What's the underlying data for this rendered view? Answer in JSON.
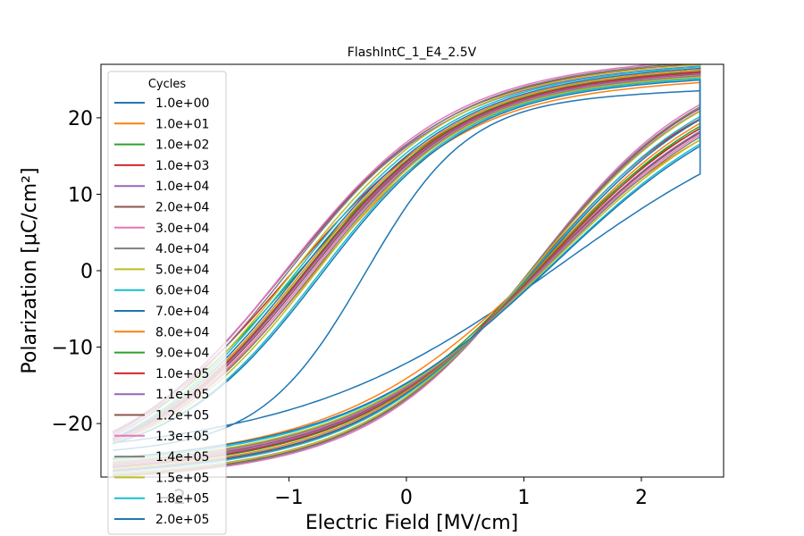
{
  "chart_data": {
    "type": "line",
    "title": "FlashIntC_1_E4_2.5V",
    "xlabel": "Electric Field [MV/cm]",
    "ylabel": "Polarization [μC/cm²]",
    "xlim": [
      -2.6,
      2.7
    ],
    "ylim": [
      -27,
      27
    ],
    "xticks": [
      -2,
      -1,
      0,
      1,
      2
    ],
    "xtick_labels": [
      "−2",
      "−1",
      "0",
      "1",
      "2"
    ],
    "yticks": [
      -20,
      -10,
      0,
      10,
      20
    ],
    "ytick_labels": [
      "−20",
      "−10",
      "0",
      "10",
      "20"
    ],
    "grid": false,
    "legend": {
      "title": "Cycles",
      "placement": "upper-left"
    },
    "x_range": [
      -2.5,
      2.5
    ],
    "series": [
      {
        "name": "1.0e+00",
        "color": "#1f77b4",
        "pmax": 22.1,
        "pmin": -22.3,
        "ec": 1.3,
        "ecn": -0.35,
        "p0": 8.4,
        "pn0": -12.1
      },
      {
        "name": "1.0e+01",
        "color": "#ff7f0e",
        "pmax": 23.4,
        "pmin": -23.6,
        "ec": 1.15,
        "ecn": -0.8,
        "p0": 12.8,
        "pn0": -14.1
      },
      {
        "name": "1.0e+02",
        "color": "#2ca02c",
        "pmax": 24.2,
        "pmin": -24.6,
        "ec": 1.12,
        "ecn": -0.95,
        "p0": 14.0,
        "pn0": -15.2
      },
      {
        "name": "1.0e+03",
        "color": "#d62728",
        "pmax": 24.8,
        "pmin": -25.1,
        "ec": 1.1,
        "ecn": -1.0,
        "p0": 14.8,
        "pn0": -16.0
      },
      {
        "name": "1.0e+04",
        "color": "#9467bd",
        "pmax": 25.6,
        "pmin": -25.4,
        "ec": 1.1,
        "ecn": -1.05,
        "p0": 16.2,
        "pn0": -16.5
      },
      {
        "name": "2.0e+04",
        "color": "#8c564b",
        "pmax": 25.9,
        "pmin": -25.6,
        "ec": 1.1,
        "ecn": -1.05,
        "p0": 16.5,
        "pn0": -16.7
      },
      {
        "name": "3.0e+04",
        "color": "#e377c2",
        "pmax": 26.3,
        "pmin": -25.8,
        "ec": 1.1,
        "ecn": -1.05,
        "p0": 16.8,
        "pn0": -17.0
      },
      {
        "name": "4.0e+04",
        "color": "#7f7f7f",
        "pmax": 26.1,
        "pmin": -25.7,
        "ec": 1.1,
        "ecn": -1.02,
        "p0": 16.4,
        "pn0": -16.8
      },
      {
        "name": "5.0e+04",
        "color": "#bcbd22",
        "pmax": 25.8,
        "pmin": -25.5,
        "ec": 1.11,
        "ecn": -0.98,
        "p0": 15.9,
        "pn0": -16.5
      },
      {
        "name": "6.0e+04",
        "color": "#17becf",
        "pmax": 25.5,
        "pmin": -25.2,
        "ec": 1.13,
        "ecn": -0.95,
        "p0": 15.4,
        "pn0": -16.2
      },
      {
        "name": "7.0e+04",
        "color": "#1f77b4",
        "pmax": 25.3,
        "pmin": -25.0,
        "ec": 1.14,
        "ecn": -0.92,
        "p0": 15.0,
        "pn0": -16.0
      },
      {
        "name": "8.0e+04",
        "color": "#ff7f0e",
        "pmax": 25.1,
        "pmin": -24.9,
        "ec": 1.15,
        "ecn": -0.9,
        "p0": 14.7,
        "pn0": -15.8
      },
      {
        "name": "9.0e+04",
        "color": "#2ca02c",
        "pmax": 24.9,
        "pmin": -24.7,
        "ec": 1.16,
        "ecn": -0.88,
        "p0": 14.4,
        "pn0": -15.6
      },
      {
        "name": "1.0e+05",
        "color": "#d62728",
        "pmax": 24.8,
        "pmin": -24.6,
        "ec": 1.17,
        "ecn": -0.87,
        "p0": 14.2,
        "pn0": -15.5
      },
      {
        "name": "1.1e+05",
        "color": "#9467bd",
        "pmax": 24.6,
        "pmin": -24.5,
        "ec": 1.18,
        "ecn": -0.86,
        "p0": 14.0,
        "pn0": -15.4
      },
      {
        "name": "1.2e+05",
        "color": "#8c564b",
        "pmax": 24.5,
        "pmin": -24.3,
        "ec": 1.19,
        "ecn": -0.84,
        "p0": 13.8,
        "pn0": -15.3
      },
      {
        "name": "1.3e+05",
        "color": "#e377c2",
        "pmax": 24.4,
        "pmin": -24.2,
        "ec": 1.2,
        "ecn": -0.82,
        "p0": 13.6,
        "pn0": -15.2
      },
      {
        "name": "1.4e+05",
        "color": "#7f7f7f",
        "pmax": 24.3,
        "pmin": -24.1,
        "ec": 1.21,
        "ecn": -0.8,
        "p0": 13.4,
        "pn0": -15.1
      },
      {
        "name": "1.5e+05",
        "color": "#bcbd22",
        "pmax": 24.1,
        "pmin": -24.0,
        "ec": 1.22,
        "ecn": -0.78,
        "p0": 13.2,
        "pn0": -15.0
      },
      {
        "name": "1.8e+05",
        "color": "#17becf",
        "pmax": 23.9,
        "pmin": -23.8,
        "ec": 1.24,
        "ecn": -0.74,
        "p0": 12.8,
        "pn0": -14.8
      },
      {
        "name": "2.0e+05",
        "color": "#1f77b4",
        "pmax": 23.7,
        "pmin": -23.6,
        "ec": 1.25,
        "ecn": -0.72,
        "p0": 12.5,
        "pn0": -14.7
      }
    ]
  }
}
